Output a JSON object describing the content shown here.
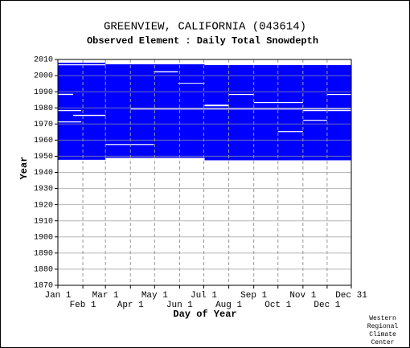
{
  "chart_data": {
    "type": "range",
    "title": "GREENVIEW, CALIFORNIA   (043614)",
    "subtitle": "Observed Element : Daily Total Snowdepth",
    "x_label": "Day of Year",
    "y_label": "Year",
    "credit": [
      "Western",
      "Regional",
      "Climate",
      "Center"
    ],
    "color": "#0000ff",
    "gap_color": "#ffffff",
    "grid": true,
    "xlim": [
      1,
      365
    ],
    "ylim": [
      1870,
      2010
    ],
    "xticks": [
      {
        "value": 1,
        "label": "Jan 1"
      },
      {
        "value": 32,
        "label": "Feb 1"
      },
      {
        "value": 60,
        "label": "Mar 1"
      },
      {
        "value": 91,
        "label": "Apr 1"
      },
      {
        "value": 121,
        "label": "May 1"
      },
      {
        "value": 152,
        "label": "Jun 1"
      },
      {
        "value": 182,
        "label": "Jul 1"
      },
      {
        "value": 213,
        "label": "Aug 1"
      },
      {
        "value": 244,
        "label": "Sep 1"
      },
      {
        "value": 274,
        "label": "Oct 1"
      },
      {
        "value": 305,
        "label": "Nov 1"
      },
      {
        "value": 335,
        "label": "Dec 1"
      },
      {
        "value": 365,
        "label": "Dec 31"
      }
    ],
    "yticks": [
      1870,
      1880,
      1890,
      1900,
      1910,
      1920,
      1930,
      1940,
      1950,
      1960,
      1970,
      1980,
      1990,
      2000,
      2010
    ],
    "ranges": [
      [
        1,
        60,
        1947.8,
        2008
      ],
      [
        60,
        183,
        1949,
        2007
      ],
      [
        183,
        365,
        1947.5,
        2006.5
      ]
    ],
    "gaps": [
      [
        1,
        60,
        2006.4,
        2007
      ],
      [
        1,
        20,
        1988,
        1988.7
      ],
      [
        20,
        60,
        1975,
        1975.7
      ],
      [
        60,
        120,
        1957,
        1957.6
      ],
      [
        1,
        30,
        1978,
        1978.6
      ],
      [
        1,
        30,
        1971,
        1971.6
      ],
      [
        120,
        150,
        2002,
        2002.7
      ],
      [
        150,
        183,
        1995,
        1995.5
      ],
      [
        183,
        213,
        1981,
        1982
      ],
      [
        213,
        244,
        1988,
        1988.6
      ],
      [
        244,
        305,
        1983,
        1983.6
      ],
      [
        305,
        365,
        1978,
        1978.6
      ],
      [
        305,
        335,
        1972,
        1972.6
      ],
      [
        274,
        305,
        1965,
        1965.6
      ],
      [
        335,
        365,
        1988,
        1988.6
      ],
      [
        91,
        365,
        1979,
        1979.6
      ]
    ]
  }
}
